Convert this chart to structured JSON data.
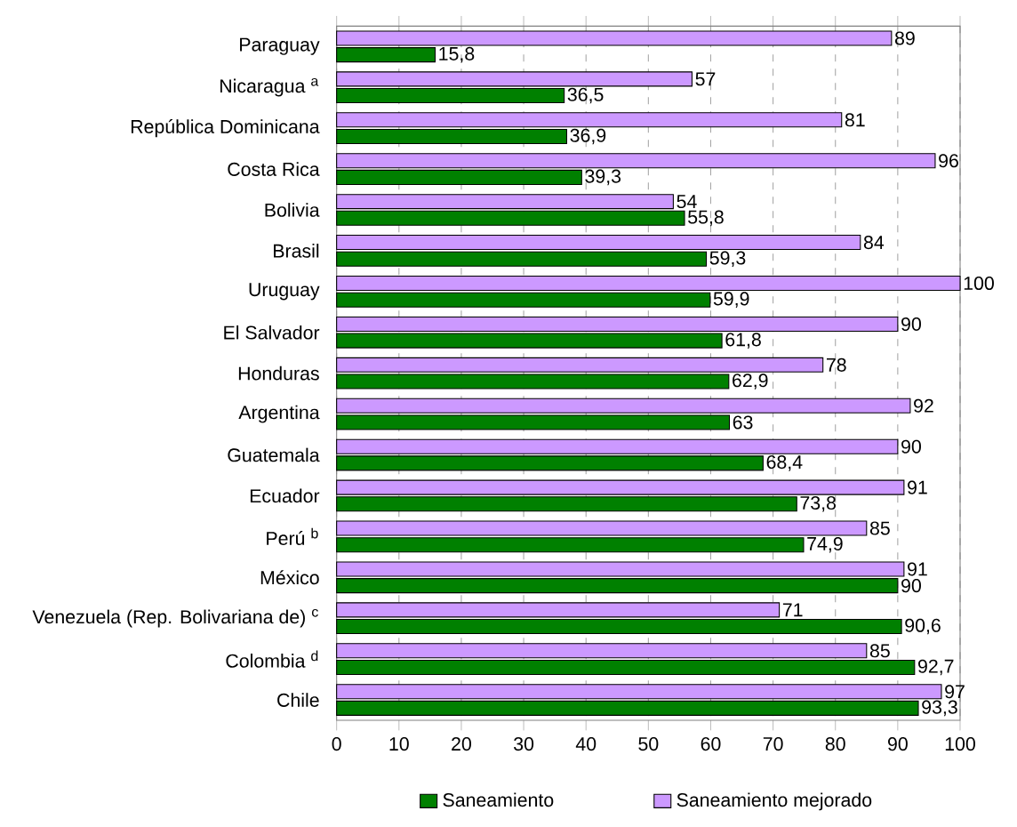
{
  "chart_data": {
    "type": "bar",
    "orientation": "horizontal",
    "categories": [
      "Paraguay",
      "Nicaragua $^{a}$",
      "República Dominicana",
      "Costa Rica",
      "Bolivia",
      "Brasil",
      "Uruguay",
      "El Salvador",
      "Honduras",
      "Argentina",
      "Guatemala",
      "Ecuador",
      "Perú $^{b}$",
      "México",
      "Venezuela (Rep. Bolivariana de) $^{c}$",
      "Colombia $^{d}$",
      "Chile"
    ],
    "series": [
      {
        "name": "Saneamiento",
        "color": "#008000",
        "values": [
          15.8,
          36.5,
          36.9,
          39.3,
          55.8,
          59.3,
          59.9,
          61.8,
          62.9,
          63,
          68.4,
          73.8,
          74.9,
          90,
          90.6,
          92.7,
          93.3
        ],
        "value_labels": [
          "15,8",
          "36,5",
          "36,9",
          "39,3",
          "55,8",
          "59,3",
          "59,9",
          "61,8",
          "62,9",
          "63",
          "68,4",
          "73,8",
          "74,9",
          "90",
          "90,6",
          "92,7",
          "93,3"
        ]
      },
      {
        "name": "Saneamiento mejorado",
        "color": "#cc99ff",
        "values": [
          89,
          57,
          81,
          96,
          54,
          84,
          100,
          90,
          78,
          92,
          90,
          91,
          85,
          91,
          71,
          85,
          97
        ],
        "value_labels": [
          "89",
          "57",
          "81",
          "96",
          "54",
          "84",
          "100",
          "90",
          "78",
          "92",
          "90",
          "91",
          "85",
          "91",
          "71",
          "85",
          "97"
        ]
      }
    ],
    "xlim": [
      0,
      100
    ],
    "xticks": [
      0,
      10,
      20,
      30,
      40,
      50,
      60,
      70,
      80,
      90,
      100
    ],
    "grid": "x",
    "legend": "bottom"
  }
}
